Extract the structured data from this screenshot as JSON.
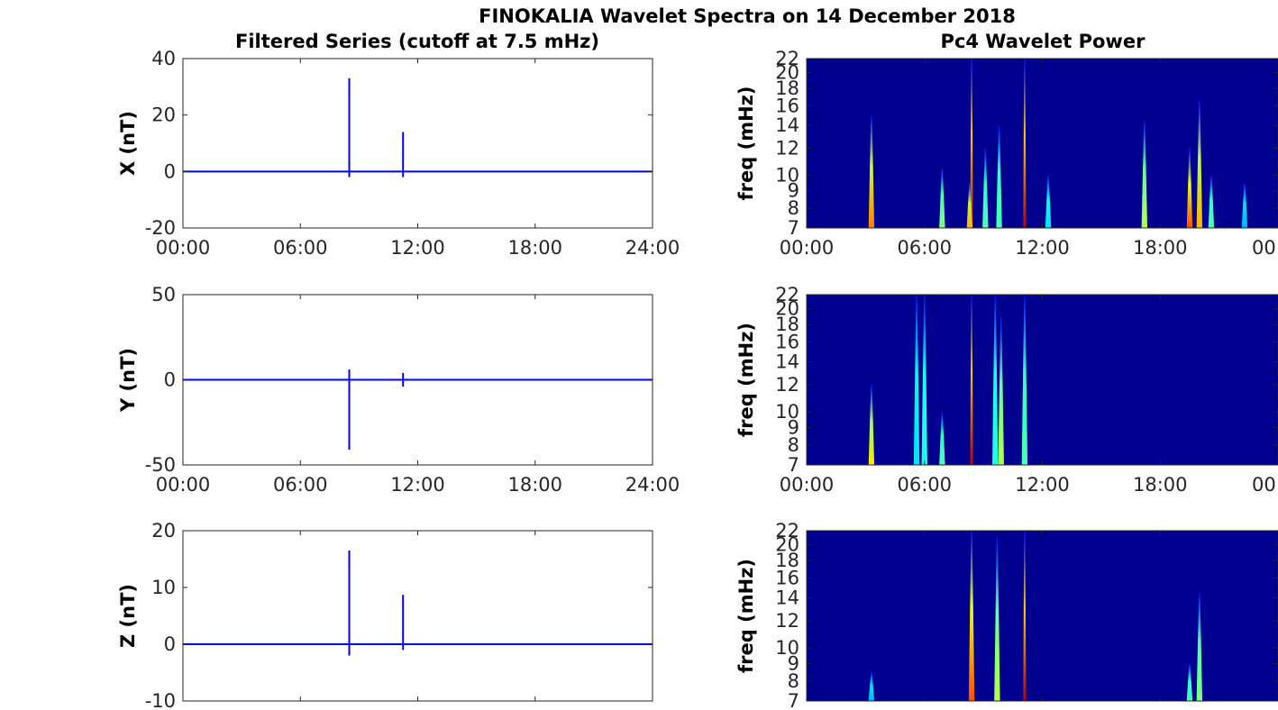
{
  "figure": {
    "title": "FINOKALIA Wavelet Spectra on 14 December 2018",
    "left_title": "Filtered Series (cutoff at 7.5 mHz)",
    "right_title": "Pc4 Wavelet Power"
  },
  "chart_data": [
    {
      "type": "line",
      "id": "x-series",
      "ylabel": "X (nT)",
      "xlim": [
        0,
        24
      ],
      "ylim": [
        -20,
        40
      ],
      "yticks": [
        -20,
        0,
        20,
        40
      ],
      "xtick_labels": [
        "00:00",
        "06:00",
        "12:00",
        "18:00",
        "24:00"
      ],
      "baseline": 0,
      "spikes": [
        {
          "t": 8.5,
          "min": -2,
          "max": 33
        },
        {
          "t": 11.25,
          "min": -2,
          "max": 14
        }
      ],
      "color": "#0000ff"
    },
    {
      "type": "line",
      "id": "y-series",
      "ylabel": "Y (nT)",
      "xlim": [
        0,
        24
      ],
      "ylim": [
        -50,
        50
      ],
      "yticks": [
        -50,
        0,
        50
      ],
      "xtick_labels": [
        "00:00",
        "06:00",
        "12:00",
        "18:00",
        "24:00"
      ],
      "baseline": 0,
      "spikes": [
        {
          "t": 8.5,
          "min": -41,
          "max": 6
        },
        {
          "t": 11.25,
          "min": -4,
          "max": 4
        }
      ],
      "color": "#0000ff"
    },
    {
      "type": "line",
      "id": "z-series",
      "ylabel": "Z (nT)",
      "xlim": [
        0,
        24
      ],
      "ylim": [
        -10,
        20
      ],
      "yticks": [
        -10,
        0,
        10,
        20
      ],
      "xtick_labels": [],
      "baseline": 0,
      "spikes": [
        {
          "t": 8.5,
          "min": -2,
          "max": 16.5
        },
        {
          "t": 11.25,
          "min": -1,
          "max": 8.7
        }
      ],
      "color": "#0000ff"
    },
    {
      "type": "heatmap",
      "id": "x-wavelet",
      "ylabel": "freq (mHz)",
      "xlim": [
        0,
        24
      ],
      "ylim": [
        7,
        22
      ],
      "yscale": "log",
      "yticks": [
        7,
        8,
        9,
        10,
        12,
        14,
        16,
        18,
        20,
        22
      ],
      "xtick_labels": [
        "00:00",
        "06:00",
        "12:00",
        "18:00",
        "00"
      ],
      "background": "#00008f",
      "streaks": [
        {
          "t": 3.3,
          "top": 15,
          "peak": 0.75
        },
        {
          "t": 6.9,
          "top": 10.5,
          "peak": 0.5
        },
        {
          "t": 8.4,
          "top": 22,
          "peak": 0.95
        },
        {
          "t": 8.3,
          "top": 9.5,
          "peak": 0.7
        },
        {
          "t": 9.1,
          "top": 12,
          "peak": 0.45
        },
        {
          "t": 9.8,
          "top": 14,
          "peak": 0.45
        },
        {
          "t": 11.1,
          "top": 22,
          "peak": 0.95
        },
        {
          "t": 12.3,
          "top": 10,
          "peak": 0.35
        },
        {
          "t": 17.2,
          "top": 14.5,
          "peak": 0.55
        },
        {
          "t": 19.5,
          "top": 12,
          "peak": 0.8
        },
        {
          "t": 20.0,
          "top": 16.5,
          "peak": 0.7
        },
        {
          "t": 20.6,
          "top": 10,
          "peak": 0.45
        },
        {
          "t": 22.3,
          "top": 9.5,
          "peak": 0.3
        }
      ]
    },
    {
      "type": "heatmap",
      "id": "y-wavelet",
      "ylabel": "freq (mHz)",
      "xlim": [
        0,
        24
      ],
      "ylim": [
        7,
        22
      ],
      "yscale": "log",
      "yticks": [
        7,
        8,
        9,
        10,
        12,
        14,
        16,
        18,
        20,
        22
      ],
      "xtick_labels": [
        "00:00",
        "06:00",
        "12:00",
        "18:00",
        "00"
      ],
      "background": "#00008f",
      "streaks": [
        {
          "t": 3.3,
          "top": 12,
          "peak": 0.65
        },
        {
          "t": 5.6,
          "top": 22,
          "peak": 0.35
        },
        {
          "t": 6.0,
          "top": 22,
          "peak": 0.4
        },
        {
          "t": 6.9,
          "top": 10,
          "peak": 0.45
        },
        {
          "t": 8.4,
          "top": 22,
          "peak": 0.95
        },
        {
          "t": 9.6,
          "top": 22,
          "peak": 0.4
        },
        {
          "t": 9.9,
          "top": 19,
          "peak": 0.55
        },
        {
          "t": 11.1,
          "top": 22,
          "peak": 0.45
        }
      ]
    },
    {
      "type": "heatmap",
      "id": "z-wavelet",
      "ylabel": "freq (mHz)",
      "xlim": [
        0,
        24
      ],
      "ylim": [
        7,
        22
      ],
      "yscale": "log",
      "yticks": [
        7,
        8,
        9,
        10,
        12,
        14,
        16,
        18,
        20,
        22
      ],
      "xtick_labels": [],
      "background": "#00008f",
      "streaks": [
        {
          "t": 3.3,
          "top": 8.5,
          "peak": 0.3
        },
        {
          "t": 8.4,
          "top": 22,
          "peak": 0.8
        },
        {
          "t": 9.7,
          "top": 21,
          "peak": 0.55
        },
        {
          "t": 11.1,
          "top": 22,
          "peak": 0.95
        },
        {
          "t": 19.5,
          "top": 9,
          "peak": 0.45
        },
        {
          "t": 20.0,
          "top": 14.5,
          "peak": 0.5
        }
      ]
    }
  ]
}
